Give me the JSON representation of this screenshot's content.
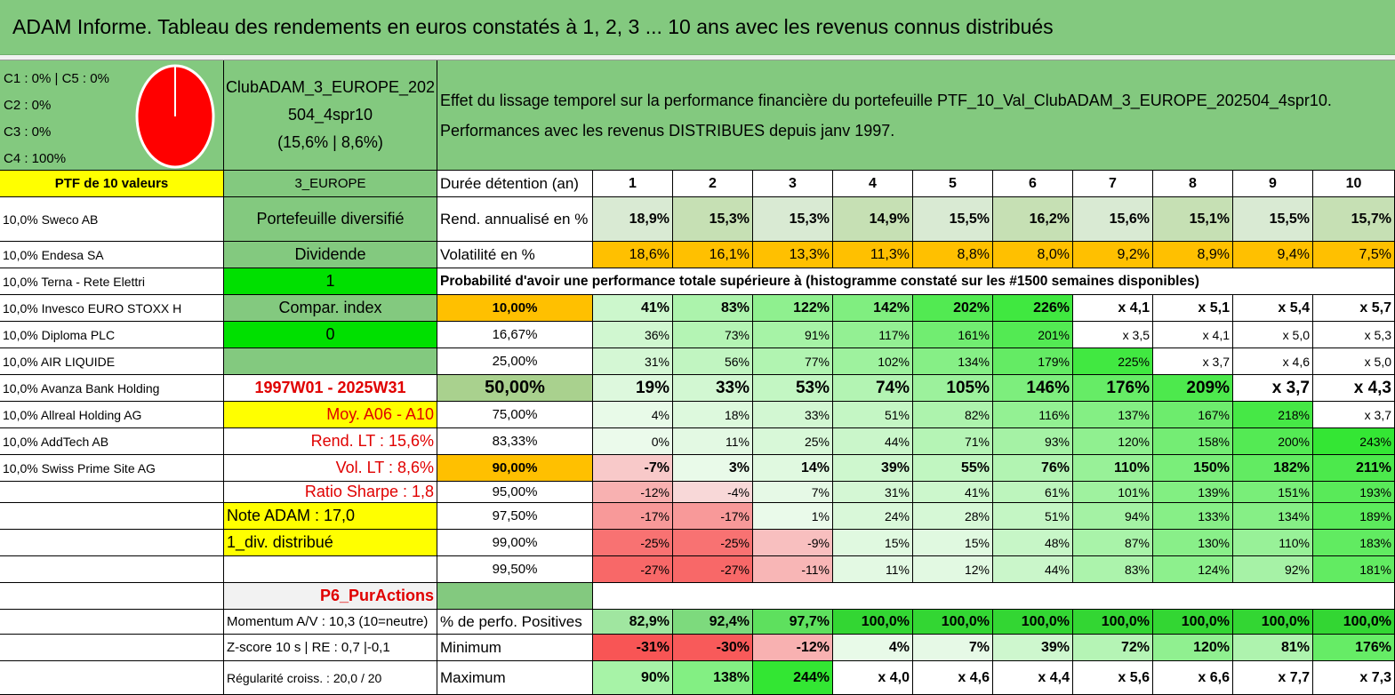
{
  "title": "ADAM Informe. Tableau des rendements en euros constatés à 1, 2, 3 ... 10 ans avec les revenus connus distribués",
  "allocation": {
    "line1": "C1 : 0% | C5 : 0%",
    "line2": "C2 : 0%",
    "line3": "C3 : 0%",
    "line4": "C4 : 100%",
    "pie_color": "#ff0000"
  },
  "portfolio": {
    "name_l1": "ClubADAM_3_EUROPE_202",
    "name_l2": "504_4spr10",
    "name_l3": "(15,6% | 8,6%)"
  },
  "description": {
    "line1": "Effet du lissage temporel sur la performance financière du portefeuille PTF_10_Val_ClubADAM_3_EUROPE_202504_4spr10.",
    "line2": "Performances avec les revenus DISTRIBUES depuis janv 1997."
  },
  "header_row": {
    "ptf": "PTF de 10 valeurs",
    "region": "3_EUROPE",
    "duration_label": "Durée détention (an)",
    "years": [
      "1",
      "2",
      "3",
      "4",
      "5",
      "6",
      "7",
      "8",
      "9",
      "10"
    ]
  },
  "holdings": [
    "10,0% Sweco AB",
    "10,0% Endesa SA",
    "10,0% Terna - Rete Elettri",
    "10,0% Invesco EURO STOXX H",
    "10,0% Diploma PLC",
    "10,0% AIR LIQUIDE",
    "10,0% Avanza Bank Holding",
    "10,0% Allreal Holding AG",
    "10,0% AddTech AB",
    "10,0% Swiss Prime Site AG"
  ],
  "info": [
    "Portefeuille diversifié",
    "Dividende",
    "1",
    "Compar. index",
    "0",
    "",
    "1997W01 - 2025W31",
    "Moy. A06 - A10",
    "Rend. LT : 15,6%",
    "Vol. LT : 8,6%",
    "Ratio Sharpe : 1,8",
    "Note ADAM : 17,0",
    "1_div. distribué",
    "",
    "P6_PurActions",
    "Momentum A/V : 10,3 (10=neutre)",
    "Z-score 10 s | RE : 0,7 |-0,1",
    "Régularité croiss. : 20,0 / 20"
  ],
  "rend": {
    "label": "Rend. annualisé en %",
    "values": [
      "18,9%",
      "15,3%",
      "15,3%",
      "14,9%",
      "15,5%",
      "16,2%",
      "15,6%",
      "15,1%",
      "15,5%",
      "15,7%"
    ]
  },
  "vol": {
    "label": "Volatilité en %",
    "values": [
      "18,6%",
      "16,1%",
      "13,3%",
      "11,3%",
      "8,8%",
      "8,0%",
      "9,2%",
      "8,9%",
      "9,4%",
      "7,5%"
    ]
  },
  "proba_title": "Probabilité d'avoir une performance totale supérieure à (histogramme constaté sur les #1500 semaines disponibles)",
  "proba": [
    {
      "p": "10,00%",
      "v": [
        "41%",
        "83%",
        "122%",
        "142%",
        "202%",
        "226%",
        "x 4,1",
        "x 5,1",
        "x 5,4",
        "x 5,7"
      ]
    },
    {
      "p": "16,67%",
      "v": [
        "36%",
        "73%",
        "91%",
        "117%",
        "161%",
        "201%",
        "x 3,5",
        "x 4,1",
        "x 5,0",
        "x 5,3"
      ]
    },
    {
      "p": "25,00%",
      "v": [
        "31%",
        "56%",
        "77%",
        "102%",
        "134%",
        "179%",
        "225%",
        "x 3,7",
        "x 4,6",
        "x 5,0"
      ]
    },
    {
      "p": "50,00%",
      "v": [
        "19%",
        "33%",
        "53%",
        "74%",
        "105%",
        "146%",
        "176%",
        "209%",
        "x 3,7",
        "x 4,3"
      ]
    },
    {
      "p": "75,00%",
      "v": [
        "4%",
        "18%",
        "33%",
        "51%",
        "82%",
        "116%",
        "137%",
        "167%",
        "218%",
        "x 3,7"
      ]
    },
    {
      "p": "83,33%",
      "v": [
        "0%",
        "11%",
        "25%",
        "44%",
        "71%",
        "93%",
        "120%",
        "158%",
        "200%",
        "243%"
      ]
    },
    {
      "p": "90,00%",
      "v": [
        "-7%",
        "3%",
        "14%",
        "39%",
        "55%",
        "76%",
        "110%",
        "150%",
        "182%",
        "211%"
      ]
    },
    {
      "p": "95,00%",
      "v": [
        "-12%",
        "-4%",
        "7%",
        "31%",
        "41%",
        "61%",
        "101%",
        "139%",
        "151%",
        "193%"
      ]
    },
    {
      "p": "97,50%",
      "v": [
        "-17%",
        "-17%",
        "1%",
        "24%",
        "28%",
        "51%",
        "94%",
        "133%",
        "134%",
        "189%"
      ]
    },
    {
      "p": "99,00%",
      "v": [
        "-25%",
        "-25%",
        "-9%",
        "15%",
        "15%",
        "48%",
        "87%",
        "130%",
        "110%",
        "183%"
      ]
    },
    {
      "p": "99,50%",
      "v": [
        "-27%",
        "-27%",
        "-11%",
        "11%",
        "12%",
        "44%",
        "83%",
        "124%",
        "92%",
        "181%"
      ]
    }
  ],
  "stats": [
    {
      "label": "% de perfo. Positives",
      "v": [
        "82,9%",
        "92,4%",
        "97,7%",
        "100,0%",
        "100,0%",
        "100,0%",
        "100,0%",
        "100,0%",
        "100,0%",
        "100,0%"
      ]
    },
    {
      "label": "Minimum",
      "v": [
        "-31%",
        "-30%",
        "-12%",
        "4%",
        "7%",
        "39%",
        "72%",
        "120%",
        "81%",
        "176%"
      ]
    },
    {
      "label": "Maximum",
      "v": [
        "90%",
        "138%",
        "244%",
        "x 4,0",
        "x 4,6",
        "x 4,4",
        "x 5,6",
        "x 6,6",
        "x 7,7",
        "x 7,3"
      ]
    }
  ]
}
